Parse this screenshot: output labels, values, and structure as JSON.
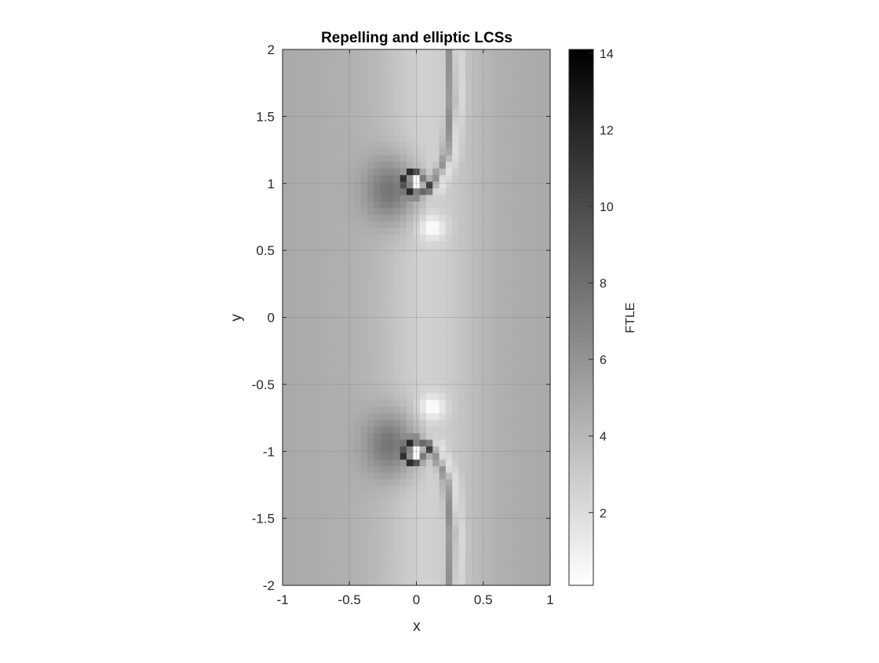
{
  "chart_data": {
    "type": "heatmap",
    "title": "Repelling and elliptic LCSs",
    "xlabel": "x",
    "ylabel": "y",
    "xlim": [
      -1,
      1
    ],
    "ylim": [
      -2,
      2
    ],
    "x_ticks": [
      -1,
      -0.5,
      0,
      0.5,
      1
    ],
    "x_tick_labels": [
      "-1",
      "-0.5",
      "0",
      "0.5",
      "1"
    ],
    "y_ticks": [
      -2,
      -1.5,
      -1,
      -0.5,
      0,
      0.5,
      1,
      1.5,
      2
    ],
    "y_tick_labels": [
      "-2",
      "-1.5",
      "-1",
      "-0.5",
      "0",
      "0.5",
      "1",
      "1.5",
      "2"
    ],
    "grid": true,
    "colormap": "gray (reversed: low = white, high = black)",
    "colorbar": {
      "label": "FTLE",
      "range": [
        0.1,
        14.1
      ],
      "ticks": [
        2,
        4,
        6,
        8,
        10,
        12,
        14
      ],
      "tick_labels": [
        "2",
        "4",
        "6",
        "8",
        "10",
        "12",
        "14"
      ],
      "position": "right"
    },
    "grid_resolution": {
      "nx": 41,
      "ny": 81
    },
    "field_features": {
      "elliptic_vortex_centers": [
        {
          "x": 0,
          "y": 1,
          "ftle_ring_max": 14
        },
        {
          "x": 0,
          "y": -1,
          "ftle_ring_max": 14
        }
      ],
      "repelling_ridge_upper": [
        [
          0.25,
          2
        ],
        [
          0.26,
          1.6
        ],
        [
          0.22,
          1.2
        ],
        [
          0.1,
          0.95
        ]
      ],
      "repelling_ridge_lower": [
        [
          0.25,
          -2
        ],
        [
          0.26,
          -1.6
        ],
        [
          0.22,
          -1.2
        ],
        [
          0.1,
          -0.95
        ]
      ],
      "background_ftle_range": [
        2,
        5
      ]
    }
  }
}
